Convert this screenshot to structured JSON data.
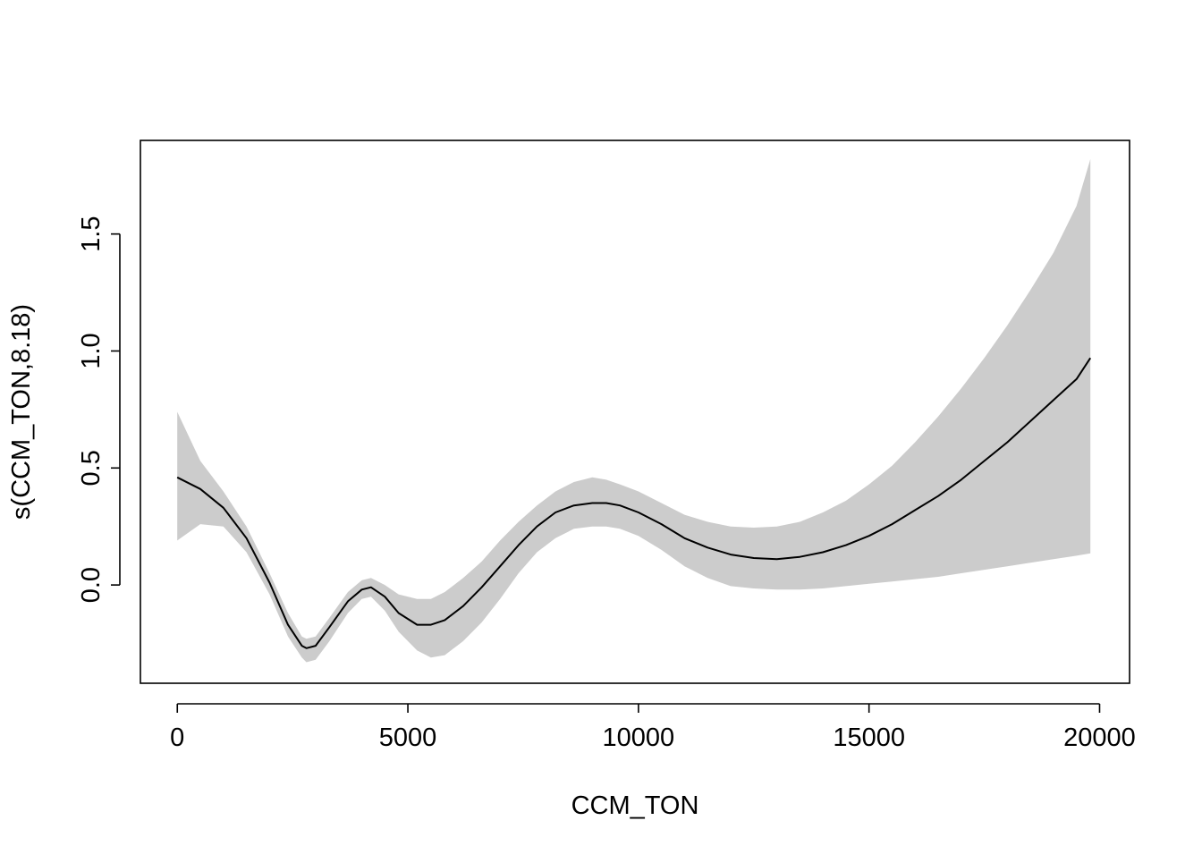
{
  "chart_data": {
    "type": "line",
    "title": "",
    "xlabel": "CCM_TON",
    "ylabel": "s(CCM_TON,8.18)",
    "xlim": [
      -800,
      20650
    ],
    "ylim": [
      -0.42,
      1.9
    ],
    "x_ticks": [
      0,
      5000,
      10000,
      15000,
      20000
    ],
    "x_tick_labels": [
      "0",
      "5000",
      "10000",
      "15000",
      "20000"
    ],
    "y_ticks": [
      0.0,
      0.5,
      1.0,
      1.5
    ],
    "y_tick_labels": [
      "0.0",
      "0.5",
      "1.0",
      "1.5"
    ],
    "grid": false,
    "legend": "none",
    "colors": {
      "line": "#000000",
      "band": "#cccccc",
      "axes": "#000000",
      "background": "#ffffff"
    },
    "series": [
      {
        "role": "estimate",
        "x": [
          0,
          500,
          1000,
          1500,
          2000,
          2400,
          2700,
          2800,
          3000,
          3300,
          3700,
          4000,
          4200,
          4500,
          4800,
          5200,
          5500,
          5800,
          6200,
          6600,
          7000,
          7400,
          7800,
          8200,
          8600,
          9000,
          9300,
          9600,
          10000,
          10500,
          11000,
          11500,
          12000,
          12500,
          13000,
          13500,
          14000,
          14500,
          15000,
          15500,
          16000,
          16500,
          17000,
          17500,
          18000,
          18500,
          19000,
          19500,
          19800
        ],
        "y": [
          0.46,
          0.41,
          0.33,
          0.2,
          0.01,
          -0.17,
          -0.26,
          -0.27,
          -0.26,
          -0.18,
          -0.07,
          -0.02,
          -0.01,
          -0.05,
          -0.12,
          -0.17,
          -0.17,
          -0.15,
          -0.09,
          -0.01,
          0.08,
          0.17,
          0.25,
          0.31,
          0.34,
          0.35,
          0.35,
          0.34,
          0.31,
          0.26,
          0.2,
          0.16,
          0.13,
          0.115,
          0.11,
          0.12,
          0.14,
          0.17,
          0.21,
          0.26,
          0.32,
          0.38,
          0.45,
          0.53,
          0.61,
          0.7,
          0.79,
          0.88,
          0.97
        ]
      },
      {
        "role": "upper_band",
        "x": [
          0,
          500,
          1000,
          1500,
          2000,
          2400,
          2700,
          2800,
          3000,
          3300,
          3700,
          4000,
          4200,
          4500,
          4800,
          5200,
          5500,
          5800,
          6200,
          6600,
          7000,
          7400,
          7800,
          8200,
          8600,
          9000,
          9300,
          9600,
          10000,
          10500,
          11000,
          11500,
          12000,
          12500,
          13000,
          13500,
          14000,
          14500,
          15000,
          15500,
          16000,
          16500,
          17000,
          17500,
          18000,
          18500,
          19000,
          19500,
          19800
        ],
        "y": [
          0.74,
          0.53,
          0.4,
          0.25,
          0.05,
          -0.12,
          -0.22,
          -0.23,
          -0.22,
          -0.14,
          -0.03,
          0.02,
          0.03,
          0.0,
          -0.04,
          -0.06,
          -0.06,
          -0.03,
          0.03,
          0.1,
          0.19,
          0.27,
          0.34,
          0.4,
          0.44,
          0.46,
          0.45,
          0.43,
          0.4,
          0.35,
          0.3,
          0.27,
          0.25,
          0.245,
          0.25,
          0.27,
          0.31,
          0.36,
          0.43,
          0.51,
          0.61,
          0.72,
          0.84,
          0.97,
          1.11,
          1.26,
          1.42,
          1.62,
          1.82
        ]
      },
      {
        "role": "lower_band",
        "x": [
          0,
          500,
          1000,
          1500,
          2000,
          2400,
          2700,
          2800,
          3000,
          3300,
          3700,
          4000,
          4200,
          4500,
          4800,
          5200,
          5500,
          5800,
          6200,
          6600,
          7000,
          7400,
          7800,
          8200,
          8600,
          9000,
          9300,
          9600,
          10000,
          10500,
          11000,
          11500,
          12000,
          12500,
          13000,
          13500,
          14000,
          14500,
          15000,
          15500,
          16000,
          16500,
          17000,
          17500,
          18000,
          18500,
          19000,
          19500,
          19800
        ],
        "y": [
          0.19,
          0.26,
          0.25,
          0.14,
          -0.04,
          -0.22,
          -0.31,
          -0.33,
          -0.32,
          -0.24,
          -0.12,
          -0.06,
          -0.05,
          -0.11,
          -0.2,
          -0.28,
          -0.31,
          -0.3,
          -0.24,
          -0.16,
          -0.06,
          0.05,
          0.14,
          0.2,
          0.24,
          0.25,
          0.25,
          0.24,
          0.21,
          0.15,
          0.08,
          0.03,
          -0.005,
          -0.015,
          -0.02,
          -0.02,
          -0.015,
          -0.005,
          0.005,
          0.015,
          0.025,
          0.035,
          0.05,
          0.065,
          0.08,
          0.095,
          0.11,
          0.125,
          0.135
        ]
      }
    ]
  }
}
